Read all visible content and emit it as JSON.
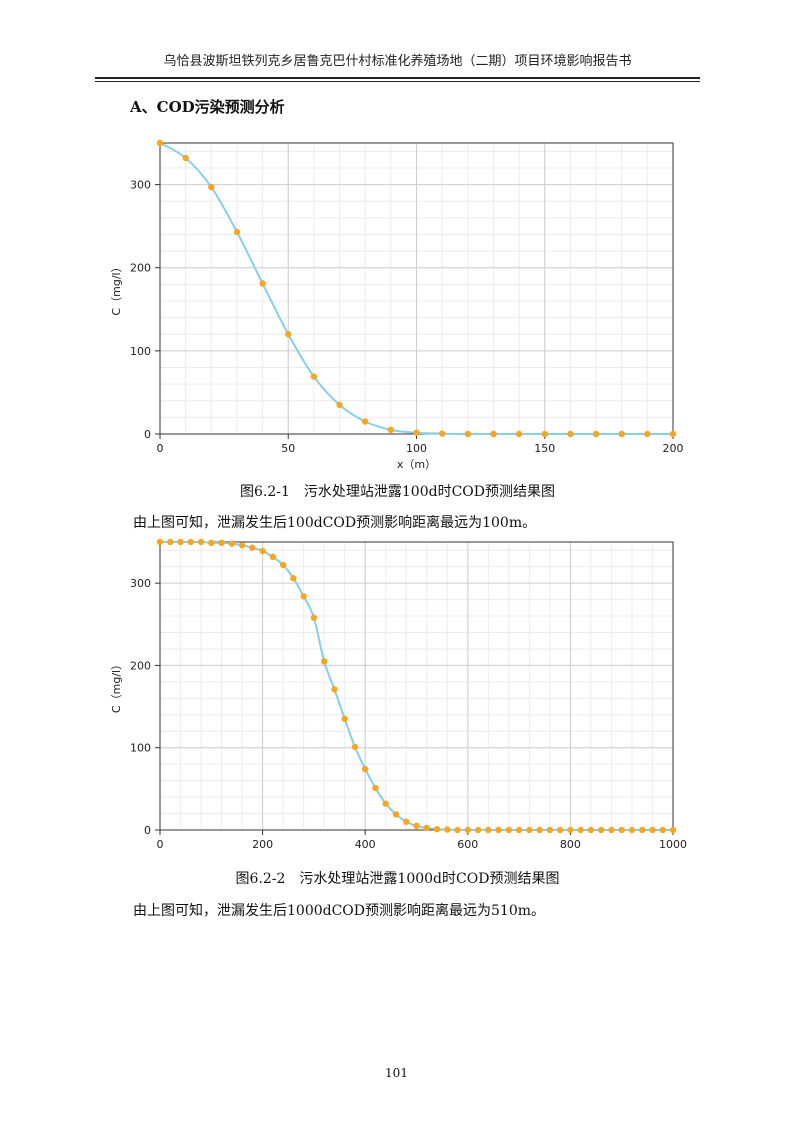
{
  "header": {
    "title": "乌恰县波斯坦铁列克乡居鲁克巴什村标准化养殖场地（二期）项目环境影响报告书"
  },
  "section": {
    "title": "A、COD污染预测分析"
  },
  "figures": [
    {
      "caption": "图6.2-1　污水处理站泄露100d时COD预测结果图",
      "conclusion": "由上图可知，泄漏发生后100dCOD预测影响距离最远为100m。"
    },
    {
      "caption": "图6.2-2　污水处理站泄露1000d时COD预测结果图",
      "conclusion": "由上图可知，泄漏发生后1000dCOD预测影响距离最远为510m。"
    }
  ],
  "page": {
    "number": "101"
  },
  "chart_data": [
    {
      "type": "line",
      "xlabel": "x（m）",
      "ylabel": "C（mg/l）",
      "xlim": [
        0,
        200
      ],
      "ylim": [
        0,
        350
      ],
      "xticks": [
        0,
        50,
        100,
        150,
        200
      ],
      "yticks": [
        0,
        100,
        200,
        300
      ],
      "grid": true,
      "line_color": "#87ceeb",
      "marker_color": "#f5a623",
      "x": [
        0,
        10,
        20,
        30,
        40,
        50,
        60,
        70,
        80,
        90,
        100,
        110,
        120,
        130,
        140,
        150,
        160,
        170,
        180,
        190,
        200
      ],
      "y": [
        350,
        332,
        297,
        243,
        181,
        120,
        69,
        35,
        15,
        5,
        1.5,
        0.4,
        0,
        0,
        0,
        0,
        0,
        0,
        0,
        0,
        0
      ]
    },
    {
      "type": "line",
      "xlabel": "",
      "ylabel": "C（mg/l）",
      "xlim": [
        0,
        1000
      ],
      "ylim": [
        0,
        350
      ],
      "xticks": [
        0,
        200,
        400,
        600,
        800,
        1000
      ],
      "yticks": [
        0,
        100,
        200,
        300
      ],
      "grid": true,
      "line_color": "#87ceeb",
      "marker_color": "#f5a623",
      "x": [
        0,
        20,
        40,
        60,
        80,
        100,
        120,
        140,
        160,
        180,
        200,
        220,
        240,
        260,
        280,
        300,
        320,
        340,
        360,
        380,
        400,
        420,
        440,
        460,
        480,
        500,
        520,
        540,
        560,
        580,
        600,
        620,
        640,
        660,
        680,
        700,
        720,
        740,
        760,
        780,
        800,
        820,
        840,
        860,
        880,
        900,
        920,
        940,
        960,
        980,
        1000
      ],
      "y": [
        350,
        350,
        350,
        350,
        350,
        349,
        349,
        348,
        346,
        343,
        339,
        332,
        322,
        306,
        284,
        258,
        205,
        171,
        135,
        101,
        74,
        51,
        32,
        19,
        10,
        5,
        2.5,
        1,
        0.5,
        0,
        0,
        0,
        0,
        0,
        0,
        0,
        0,
        0,
        0,
        0,
        0,
        0,
        0,
        0,
        0,
        0,
        0,
        0,
        0,
        0,
        0
      ]
    }
  ]
}
